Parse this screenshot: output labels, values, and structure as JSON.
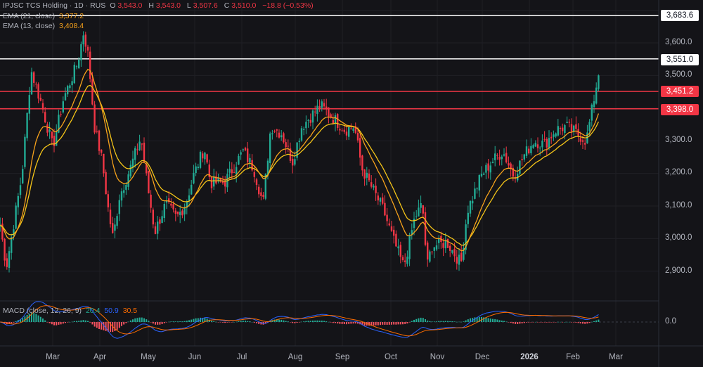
{
  "header": {
    "symbol": "IPJSC TCS Holding · 1D · RUS",
    "open_label": "O",
    "open": "3,543.0",
    "high_label": "H",
    "high": "3,543.0",
    "low_label": "L",
    "low": "3,507.6",
    "close_label": "C",
    "close": "3,510.0",
    "change": "−18.8 (−0.53%)"
  },
  "indicators": {
    "ema21_label": "EMA (21, close)",
    "ema21_value": "3,377.2",
    "ema13_label": "EMA (13, close)",
    "ema13_value": "3,408.4",
    "macd_label": "MACD (close, 12, 26, 9)",
    "macd_hist": "20.4",
    "macd_line": "50.9",
    "macd_signal": "30.5"
  },
  "price_axis": {
    "ticks": [
      "3,600.0",
      "3,500.0",
      "3,300.0",
      "3,200.0",
      "3,100.0",
      "3,000.0",
      "2,900.0"
    ],
    "macd_zero": "0.0"
  },
  "levels": [
    {
      "value": "3,683.6",
      "style": "white"
    },
    {
      "value": "3,551.0",
      "style": "white"
    },
    {
      "value": "3,451.2",
      "style": "red"
    },
    {
      "value": "3,398.0",
      "style": "red"
    }
  ],
  "time_axis": [
    "Mar",
    "Apr",
    "May",
    "Jun",
    "Jul",
    "Aug",
    "Sep",
    "Oct",
    "Nov",
    "Dec",
    "2026",
    "Feb",
    "Mar"
  ],
  "colors": {
    "up": "#22ab94",
    "down": "#f23645",
    "ema13": "#f7a21b",
    "ema21": "#f5c518",
    "macd": "#2962ff",
    "signal": "#ff6d00",
    "background": "#141418"
  },
  "chart_data": {
    "type": "candlestick",
    "ylim": [
      2800,
      3720
    ],
    "dates": [
      "2025-01-26",
      "2025-01-30",
      "2025-02-09",
      "2025-02-15",
      "2025-02-22",
      "2025-03-01",
      "2025-03-08",
      "2025-03-17",
      "2025-03-21",
      "2025-03-24",
      "2025-03-28",
      "2025-04-02",
      "2025-04-06",
      "2025-04-09",
      "2025-04-13",
      "2025-04-20",
      "2025-04-27",
      "2025-05-01",
      "2025-05-06",
      "2025-05-13",
      "2025-05-20",
      "2025-05-26",
      "2025-05-31",
      "2025-06-07",
      "2025-06-11",
      "2025-06-20",
      "2025-07-02",
      "2025-07-09",
      "2025-07-15",
      "2025-07-20",
      "2025-07-27",
      "2025-08-03",
      "2025-08-09",
      "2025-08-21",
      "2025-08-28",
      "2025-09-06",
      "2025-09-12",
      "2025-09-17",
      "2025-09-24",
      "2025-10-01",
      "2025-10-07",
      "2025-10-14",
      "2025-10-21",
      "2025-10-26",
      "2025-10-29",
      "2025-11-01",
      "2025-11-11",
      "2025-11-20",
      "2025-11-24",
      "2025-12-03",
      "2025-12-10",
      "2025-12-17",
      "2025-12-24",
      "2025-12-31",
      "2026-01-06",
      "2026-01-13",
      "2026-01-20",
      "2026-01-27",
      "2026-02-03",
      "2026-02-09",
      "2026-02-14",
      "2026-02-17"
    ],
    "close": [
      3042,
      2913,
      3193,
      3516,
      3408,
      3279,
      3430,
      3537,
      3634,
      3559,
      3344,
      3236,
      3085,
      2999,
      3128,
      3214,
      3311,
      3171,
      3020,
      3106,
      3063,
      3106,
      3193,
      3279,
      3171,
      3171,
      3268,
      3214,
      3106,
      3344,
      3322,
      3236,
      3344,
      3408,
      3376,
      3333,
      3344,
      3214,
      3150,
      3085,
      2999,
      2913,
      3063,
      3106,
      2913,
      2977,
      2988,
      2923,
      3085,
      3193,
      3236,
      3268,
      3193,
      3257,
      3300,
      3289,
      3333,
      3344,
      3322,
      3300,
      3430,
      3510
    ]
  }
}
